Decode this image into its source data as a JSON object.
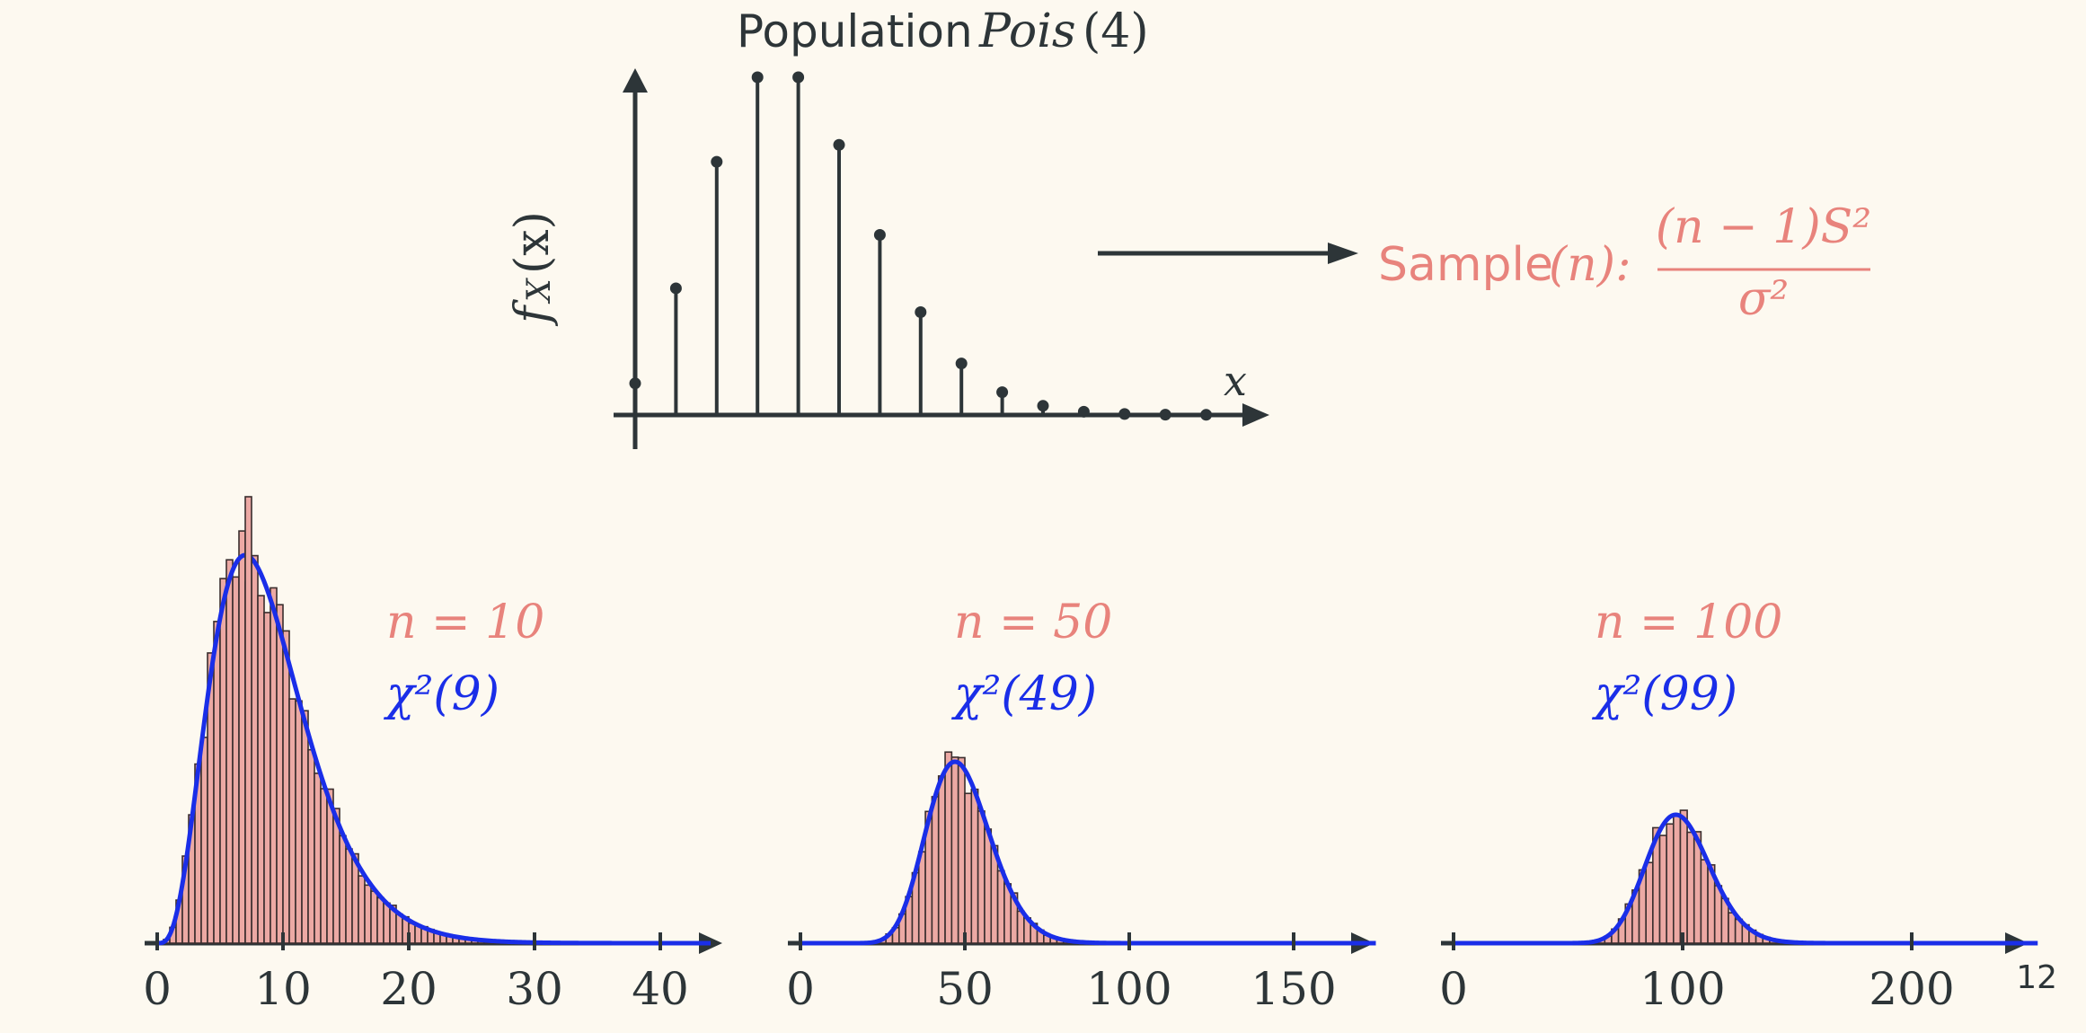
{
  "slide_number": "12",
  "colors": {
    "background": "#fdf9f0",
    "axis": "#2d3538",
    "sample": "#e8837c",
    "hist_fill": "#eca9a4",
    "curve": "#1a2ee8"
  },
  "chart_data": [
    {
      "type": "stem",
      "title_prefix": "Population",
      "title_math": "Pois",
      "title_arg": "(4)",
      "ylabel": "f_X(x)",
      "ylabel_main": "f",
      "ylabel_sub": "X",
      "ylabel_arg": "(x)",
      "xlabel": "x",
      "x": [
        0,
        1,
        2,
        3,
        4,
        5,
        6,
        7,
        8,
        9,
        10,
        11,
        12,
        13,
        14
      ],
      "values": [
        0.0183,
        0.0733,
        0.1465,
        0.1954,
        0.1954,
        0.1563,
        0.1042,
        0.0595,
        0.0298,
        0.0132,
        0.0053,
        0.0019,
        0.0006,
        0.0002,
        0.0001
      ],
      "ymax": 0.1954
    },
    {
      "type": "histogram",
      "n_label": "n = 10",
      "dist_label": "χ²(9)",
      "df": 9,
      "xlim": [
        0,
        44
      ],
      "ticks": [
        0,
        10,
        20,
        30,
        40
      ],
      "bin_width": 0.5
    },
    {
      "type": "histogram",
      "n_label": "n = 50",
      "dist_label": "χ²(49)",
      "df": 49,
      "xlim": [
        0,
        175
      ],
      "ticks": [
        0,
        50,
        100,
        150
      ],
      "bin_width": 2
    },
    {
      "type": "histogram",
      "n_label": "n = 100",
      "dist_label": "χ²(99)",
      "df": 99,
      "xlim": [
        0,
        255
      ],
      "ticks": [
        0,
        100,
        200
      ],
      "bin_width": 3
    }
  ],
  "sample": {
    "label": "Sample",
    "n": "(n):",
    "numerator": "(n − 1)S²",
    "denominator": "σ²"
  }
}
